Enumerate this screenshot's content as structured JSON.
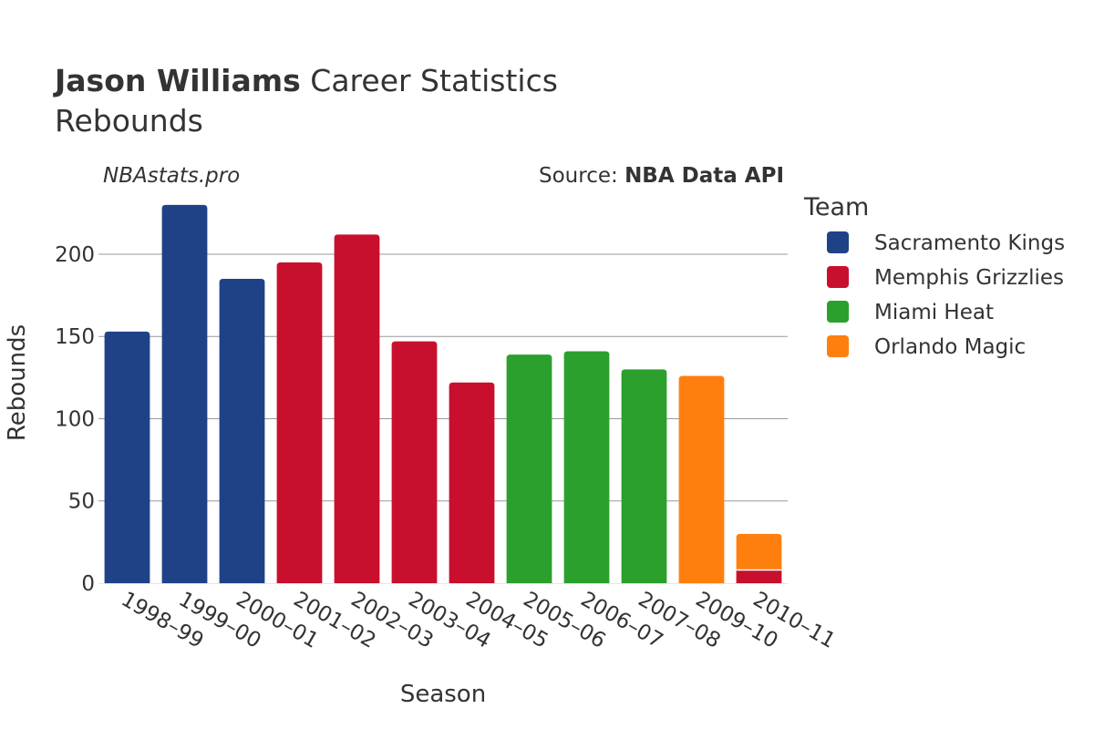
{
  "header": {
    "title_bold": "Jason Williams",
    "title_rest": " Career Statistics",
    "subtitle": "Rebounds",
    "credit": "NBAstats.pro",
    "source_label": "Source: ",
    "source_value": "NBA Data API"
  },
  "colors": {
    "text": "#333333",
    "grid": "#999999",
    "background": "#ffffff"
  },
  "chart_data": {
    "type": "bar",
    "stacked": true,
    "xlabel": "Season",
    "ylabel": "Rebounds",
    "ylim": [
      0,
      236
    ],
    "yticks": [
      0,
      50,
      100,
      150,
      200
    ],
    "grid": true,
    "legend_title": "Team",
    "legend_position": "right",
    "categories": [
      "1998–99",
      "1999–00",
      "2000–01",
      "2001–02",
      "2002–03",
      "2003–04",
      "2004–05",
      "2005–06",
      "2006–07",
      "2007–08",
      "2009–10",
      "2010–11"
    ],
    "series": [
      {
        "name": "Sacramento Kings",
        "color": "#1f4287",
        "values": [
          153,
          230,
          185,
          0,
          0,
          0,
          0,
          0,
          0,
          0,
          0,
          0
        ]
      },
      {
        "name": "Memphis Grizzlies",
        "color": "#c8102e",
        "values": [
          0,
          0,
          0,
          195,
          212,
          147,
          122,
          0,
          0,
          0,
          0,
          8
        ]
      },
      {
        "name": "Miami Heat",
        "color": "#2ca02c",
        "values": [
          0,
          0,
          0,
          0,
          0,
          0,
          0,
          139,
          141,
          130,
          0,
          0
        ]
      },
      {
        "name": "Orlando Magic",
        "color": "#ff7f0e",
        "values": [
          0,
          0,
          0,
          0,
          0,
          0,
          0,
          0,
          0,
          0,
          126,
          22
        ]
      }
    ]
  }
}
